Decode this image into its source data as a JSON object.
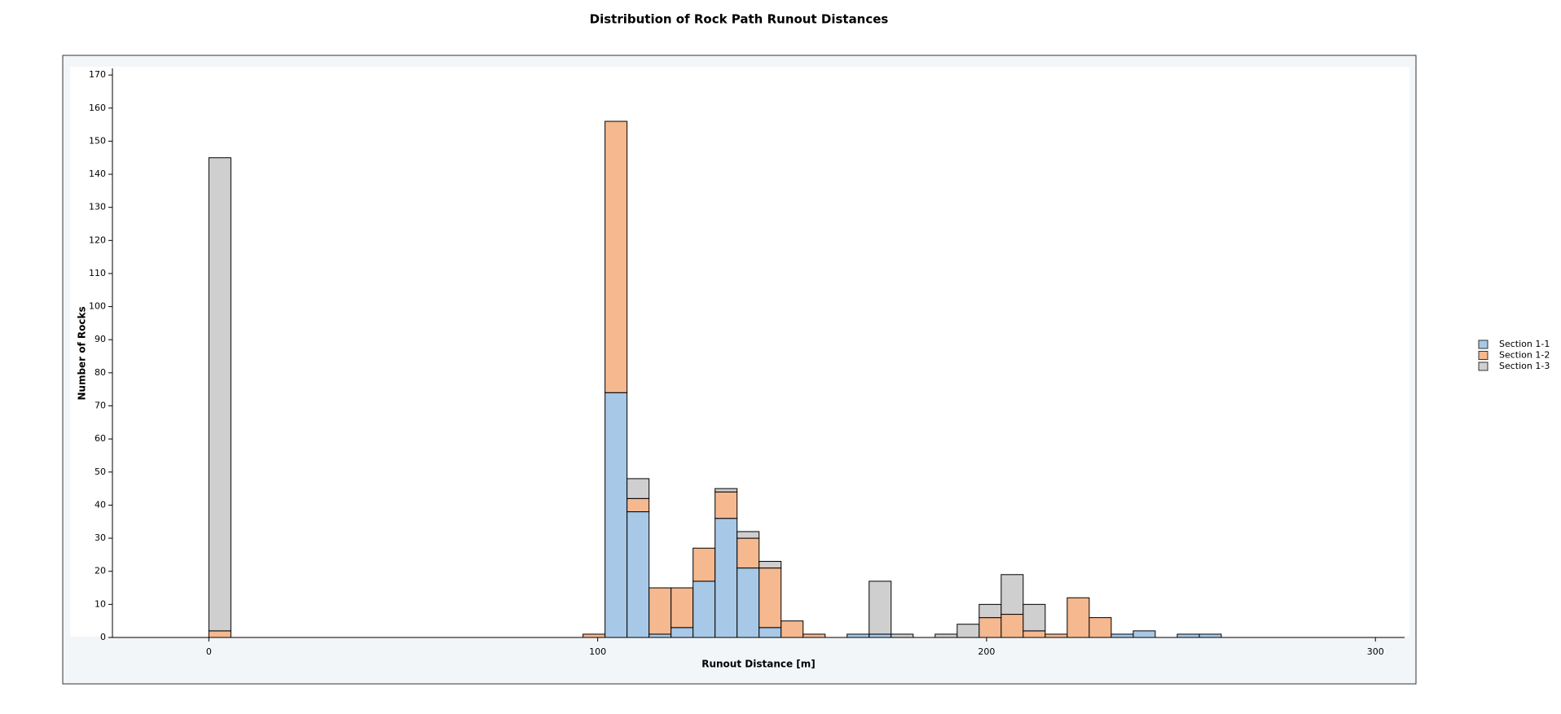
{
  "chart_data": {
    "type": "histogram",
    "title": "Distribution of Rock Path Runout Distances",
    "x_label": "Runout Distance [m]",
    "y_label": "Number of Rocks",
    "bins": [
      0,
      5.66,
      11.32,
      16.98,
      22.64,
      28.3,
      33.96,
      39.62,
      45.28,
      50.94,
      56.6,
      62.26,
      67.92,
      73.58,
      79.24,
      84.9,
      90.56,
      96.22,
      101.88,
      107.54,
      113.2,
      118.86,
      124.52,
      130.18,
      135.84,
      141.5,
      147.16,
      152.82,
      158.48,
      164.14,
      169.8,
      175.46,
      181.12,
      186.78,
      192.44,
      198.1,
      203.76,
      209.42,
      215.08,
      220.74,
      226.4,
      232.06,
      237.72,
      243.38,
      249.04,
      254.7,
      260.36
    ],
    "stacked": true,
    "series": [
      {
        "name": "Section 1-1",
        "color": "#a7c8e6",
        "values": [
          0,
          0,
          0,
          0,
          0,
          0,
          0,
          0,
          0,
          0,
          0,
          0,
          0,
          0,
          0,
          0,
          0,
          0,
          74,
          38,
          1,
          3,
          17,
          36,
          21,
          3,
          0,
          0,
          0,
          1,
          1,
          0,
          0,
          0,
          0,
          0,
          0,
          0,
          0,
          0,
          0,
          1,
          2,
          0,
          1,
          1
        ]
      },
      {
        "name": "Section 1-2",
        "color": "#f5b88f",
        "values": [
          2,
          0,
          0,
          0,
          0,
          0,
          0,
          0,
          0,
          0,
          0,
          0,
          0,
          0,
          0,
          0,
          0,
          1,
          82,
          4,
          14,
          12,
          10,
          8,
          9,
          18,
          5,
          1,
          0,
          0,
          0,
          0,
          0,
          0,
          0,
          6,
          7,
          2,
          1,
          12,
          6,
          0,
          0,
          0,
          0,
          0
        ]
      },
      {
        "name": "Section 1-3",
        "color": "#cfcfcf",
        "values": [
          143,
          0,
          0,
          0,
          0,
          0,
          0,
          0,
          0,
          0,
          0,
          0,
          0,
          0,
          0,
          0,
          0,
          0,
          0,
          6,
          0,
          0,
          0,
          1,
          2,
          2,
          0,
          0,
          0,
          0,
          16,
          1,
          0,
          1,
          4,
          4,
          12,
          8,
          0,
          0,
          0,
          0,
          0,
          0,
          0,
          0
        ]
      }
    ],
    "xlim": [
      -24.8,
      307.5
    ],
    "xticks": [
      0,
      100,
      200,
      300
    ],
    "ylim": [
      0,
      172
    ],
    "yticks": [
      0,
      10,
      20,
      30,
      40,
      50,
      60,
      70,
      80,
      90,
      100,
      110,
      120,
      130,
      140,
      150,
      160,
      170
    ],
    "legend": "right"
  }
}
